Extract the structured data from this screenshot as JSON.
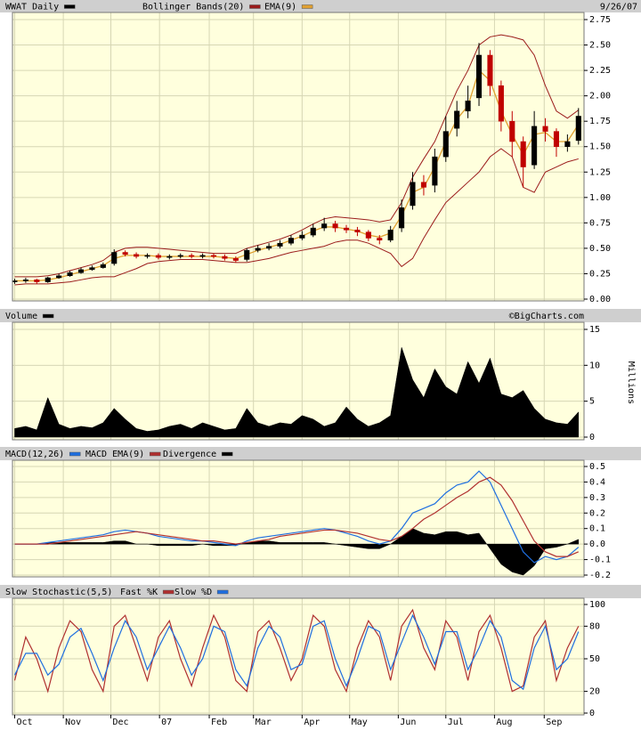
{
  "chart_data": [
    {
      "type": "candlestick",
      "title": "WWAT Daily",
      "date": "9/26/07",
      "up_color": "#000000",
      "down_color": "#c00000",
      "open": [
        0.17,
        0.18,
        0.19,
        0.17,
        0.21,
        0.23,
        0.26,
        0.29,
        0.31,
        0.35,
        0.46,
        0.44,
        0.42,
        0.43,
        0.41,
        0.42,
        0.43,
        0.42,
        0.43,
        0.42,
        0.4,
        0.39,
        0.48,
        0.5,
        0.52,
        0.55,
        0.6,
        0.63,
        0.7,
        0.74,
        0.7,
        0.68,
        0.66,
        0.6,
        0.58,
        0.7,
        0.92,
        1.15,
        1.12,
        1.4,
        1.68,
        1.85,
        1.98,
        2.4,
        2.1,
        1.75,
        1.55,
        1.32,
        1.7,
        1.65,
        1.5,
        1.56
      ],
      "high": [
        0.2,
        0.21,
        0.2,
        0.22,
        0.25,
        0.28,
        0.31,
        0.33,
        0.36,
        0.49,
        0.48,
        0.46,
        0.45,
        0.45,
        0.44,
        0.45,
        0.45,
        0.45,
        0.45,
        0.44,
        0.42,
        0.5,
        0.53,
        0.55,
        0.58,
        0.63,
        0.67,
        0.74,
        0.8,
        0.77,
        0.73,
        0.71,
        0.68,
        0.63,
        0.72,
        0.98,
        1.25,
        1.22,
        1.48,
        1.8,
        1.95,
        2.1,
        2.52,
        2.45,
        2.15,
        1.85,
        1.6,
        1.85,
        1.78,
        1.68,
        1.62,
        1.88
      ],
      "low": [
        0.15,
        0.16,
        0.15,
        0.16,
        0.2,
        0.22,
        0.25,
        0.28,
        0.3,
        0.33,
        0.42,
        0.4,
        0.4,
        0.39,
        0.39,
        0.4,
        0.4,
        0.4,
        0.4,
        0.38,
        0.36,
        0.37,
        0.46,
        0.48,
        0.5,
        0.53,
        0.58,
        0.61,
        0.67,
        0.66,
        0.65,
        0.62,
        0.57,
        0.54,
        0.56,
        0.66,
        0.88,
        1.02,
        1.05,
        1.35,
        1.6,
        1.78,
        1.9,
        2.0,
        1.65,
        1.4,
        1.1,
        1.28,
        1.55,
        1.4,
        1.45,
        1.52
      ],
      "close": [
        0.18,
        0.19,
        0.17,
        0.21,
        0.23,
        0.26,
        0.29,
        0.31,
        0.34,
        0.46,
        0.44,
        0.42,
        0.43,
        0.41,
        0.42,
        0.43,
        0.42,
        0.43,
        0.42,
        0.4,
        0.38,
        0.48,
        0.5,
        0.52,
        0.55,
        0.6,
        0.63,
        0.7,
        0.74,
        0.7,
        0.68,
        0.66,
        0.6,
        0.58,
        0.68,
        0.9,
        1.15,
        1.1,
        1.4,
        1.65,
        1.85,
        1.95,
        2.4,
        2.1,
        1.75,
        1.55,
        1.3,
        1.7,
        1.65,
        1.5,
        1.55,
        1.8
      ],
      "series": [
        {
          "name": "Bollinger Bands(20)",
          "color": "#9b1c1c",
          "upper": [
            0.22,
            0.22,
            0.22,
            0.23,
            0.25,
            0.28,
            0.31,
            0.34,
            0.38,
            0.46,
            0.5,
            0.51,
            0.51,
            0.5,
            0.49,
            0.48,
            0.47,
            0.46,
            0.45,
            0.45,
            0.45,
            0.5,
            0.53,
            0.56,
            0.59,
            0.63,
            0.68,
            0.74,
            0.79,
            0.81,
            0.8,
            0.79,
            0.78,
            0.76,
            0.78,
            0.95,
            1.2,
            1.38,
            1.55,
            1.8,
            2.05,
            2.25,
            2.5,
            2.58,
            2.6,
            2.58,
            2.55,
            2.4,
            2.1,
            1.85,
            1.78,
            1.86
          ],
          "lower": [
            0.14,
            0.15,
            0.15,
            0.15,
            0.16,
            0.17,
            0.19,
            0.21,
            0.22,
            0.22,
            0.26,
            0.3,
            0.35,
            0.37,
            0.38,
            0.39,
            0.39,
            0.39,
            0.38,
            0.37,
            0.36,
            0.36,
            0.38,
            0.4,
            0.43,
            0.46,
            0.48,
            0.5,
            0.52,
            0.56,
            0.58,
            0.58,
            0.55,
            0.5,
            0.45,
            0.32,
            0.4,
            0.6,
            0.78,
            0.95,
            1.05,
            1.15,
            1.25,
            1.4,
            1.48,
            1.4,
            1.1,
            1.05,
            1.25,
            1.3,
            1.35,
            1.38
          ]
        },
        {
          "name": "EMA(9)",
          "color": "#e0a030",
          "values": [
            0.18,
            0.18,
            0.18,
            0.19,
            0.21,
            0.24,
            0.27,
            0.3,
            0.33,
            0.4,
            0.43,
            0.43,
            0.43,
            0.42,
            0.42,
            0.42,
            0.42,
            0.42,
            0.42,
            0.41,
            0.4,
            0.44,
            0.48,
            0.51,
            0.54,
            0.58,
            0.62,
            0.67,
            0.71,
            0.71,
            0.69,
            0.67,
            0.63,
            0.61,
            0.65,
            0.82,
            1.05,
            1.1,
            1.3,
            1.55,
            1.77,
            1.9,
            2.25,
            2.15,
            1.85,
            1.62,
            1.42,
            1.62,
            1.64,
            1.55,
            1.55,
            1.72
          ]
        }
      ],
      "ylim": [
        0,
        2.75
      ],
      "yticks": [
        {
          "value": 0,
          "label": "0.00"
        },
        0.25,
        {
          "value": 0.5,
          "label": "0.50"
        },
        0.75,
        {
          "value": 1,
          "label": "1.00"
        },
        1.25,
        {
          "value": 1.5,
          "label": "1.50"
        },
        1.75,
        {
          "value": 2,
          "label": "2.00"
        },
        2.25,
        {
          "value": 2.5,
          "label": "2.50"
        },
        2.75
      ],
      "grid": true
    },
    {
      "type": "area",
      "title": "Volume",
      "source": "©BigCharts.com",
      "y_label": "Millions",
      "color": "#000000",
      "values": [
        1.2,
        1.5,
        1.0,
        5.5,
        1.8,
        1.2,
        1.5,
        1.3,
        2.0,
        4.0,
        2.5,
        1.2,
        0.8,
        1.0,
        1.5,
        1.8,
        1.2,
        2.0,
        1.5,
        1.0,
        1.2,
        4.0,
        2.0,
        1.5,
        2.0,
        1.8,
        3.0,
        2.5,
        1.5,
        2.0,
        4.2,
        2.5,
        1.5,
        2.0,
        3.0,
        12.5,
        8.0,
        5.5,
        9.5,
        7.0,
        6.0,
        10.5,
        7.5,
        11.0,
        6.0,
        5.5,
        6.5,
        4.0,
        2.5,
        2.0,
        1.8,
        3.5
      ],
      "ylim": [
        0,
        15
      ],
      "yticks": [
        0,
        5,
        10,
        15
      ],
      "grid": true
    },
    {
      "type": "line",
      "series": [
        {
          "name": "MACD(12,26)",
          "color": "#1f6fe0",
          "values": [
            0.0,
            0.0,
            0.0,
            0.01,
            0.02,
            0.03,
            0.04,
            0.05,
            0.06,
            0.08,
            0.09,
            0.08,
            0.07,
            0.05,
            0.04,
            0.03,
            0.02,
            0.02,
            0.01,
            0.0,
            -0.01,
            0.02,
            0.04,
            0.05,
            0.06,
            0.07,
            0.08,
            0.09,
            0.1,
            0.09,
            0.07,
            0.05,
            0.02,
            0.0,
            0.02,
            0.1,
            0.2,
            0.23,
            0.26,
            0.33,
            0.38,
            0.4,
            0.47,
            0.4,
            0.25,
            0.1,
            -0.05,
            -0.12,
            -0.08,
            -0.1,
            -0.08,
            -0.02
          ]
        },
        {
          "name": "MACD EMA(9)",
          "color": "#b03030",
          "values": [
            0.0,
            0.0,
            0.0,
            0.0,
            0.01,
            0.02,
            0.03,
            0.04,
            0.05,
            0.06,
            0.07,
            0.08,
            0.07,
            0.06,
            0.05,
            0.04,
            0.03,
            0.02,
            0.02,
            0.01,
            0.0,
            0.01,
            0.02,
            0.03,
            0.05,
            0.06,
            0.07,
            0.08,
            0.09,
            0.09,
            0.08,
            0.07,
            0.05,
            0.03,
            0.02,
            0.05,
            0.1,
            0.16,
            0.2,
            0.25,
            0.3,
            0.34,
            0.4,
            0.43,
            0.38,
            0.28,
            0.15,
            0.02,
            -0.05,
            -0.08,
            -0.08,
            -0.05
          ]
        },
        {
          "name": "Divergence",
          "color": "#000000",
          "type": "area",
          "values": [
            0.0,
            0.0,
            0.0,
            0.01,
            0.01,
            0.01,
            0.01,
            0.01,
            0.01,
            0.02,
            0.02,
            0.0,
            0.0,
            -0.01,
            -0.01,
            -0.01,
            -0.01,
            0.0,
            -0.01,
            -0.01,
            -0.01,
            0.01,
            0.02,
            0.02,
            0.01,
            0.01,
            0.01,
            0.01,
            0.01,
            0.0,
            -0.01,
            -0.02,
            -0.03,
            -0.03,
            0.0,
            0.05,
            0.1,
            0.07,
            0.06,
            0.08,
            0.08,
            0.06,
            0.07,
            -0.03,
            -0.13,
            -0.18,
            -0.2,
            -0.14,
            -0.03,
            -0.02,
            0.0,
            0.03
          ]
        }
      ],
      "ylim": [
        -0.2,
        0.5
      ],
      "yticks": [
        0.5,
        0.4,
        0.3,
        0.2,
        0.1,
        {
          "value": 0,
          "label": "0.0"
        },
        -0.1,
        -0.2
      ],
      "grid": true
    },
    {
      "type": "line",
      "title": "Slow Stochastic(5,5)",
      "series": [
        {
          "name": "Fast %K",
          "color": "#b03030",
          "values": [
            30,
            70,
            50,
            20,
            60,
            85,
            75,
            40,
            20,
            80,
            90,
            60,
            30,
            70,
            85,
            50,
            25,
            60,
            90,
            70,
            30,
            20,
            75,
            85,
            60,
            30,
            50,
            90,
            80,
            40,
            20,
            60,
            85,
            70,
            30,
            80,
            95,
            60,
            40,
            85,
            70,
            30,
            75,
            90,
            60,
            20,
            25,
            70,
            85,
            30,
            60,
            80
          ]
        },
        {
          "name": "Slow %D",
          "color": "#1f6fe0",
          "values": [
            35,
            55,
            55,
            35,
            45,
            70,
            78,
            55,
            30,
            60,
            85,
            70,
            40,
            60,
            80,
            60,
            35,
            50,
            80,
            75,
            40,
            25,
            60,
            80,
            70,
            40,
            45,
            80,
            85,
            50,
            25,
            50,
            80,
            75,
            40,
            65,
            90,
            70,
            45,
            75,
            75,
            40,
            60,
            85,
            70,
            30,
            22,
            60,
            80,
            40,
            50,
            75
          ]
        }
      ],
      "ylim": [
        0,
        100
      ],
      "yticks": [
        0,
        20,
        50,
        80,
        100
      ],
      "xlim": [
        -0.2,
        51.5
      ],
      "xticks": [
        {
          "value": 0,
          "label": "Oct"
        },
        {
          "value": 4.4,
          "label": "Nov"
        },
        {
          "value": 8.7,
          "label": "Dec"
        },
        {
          "value": 13.1,
          "label": "07"
        },
        {
          "value": 17.6,
          "label": "Feb"
        },
        {
          "value": 21.6,
          "label": "Mar"
        },
        {
          "value": 26,
          "label": "Apr"
        },
        {
          "value": 30.3,
          "label": "May"
        },
        {
          "value": 34.7,
          "label": "Jun"
        },
        {
          "value": 39,
          "label": "Jul"
        },
        {
          "value": 43.4,
          "label": "Aug"
        },
        {
          "value": 47.9,
          "label": "Sep"
        }
      ],
      "grid": true
    }
  ]
}
